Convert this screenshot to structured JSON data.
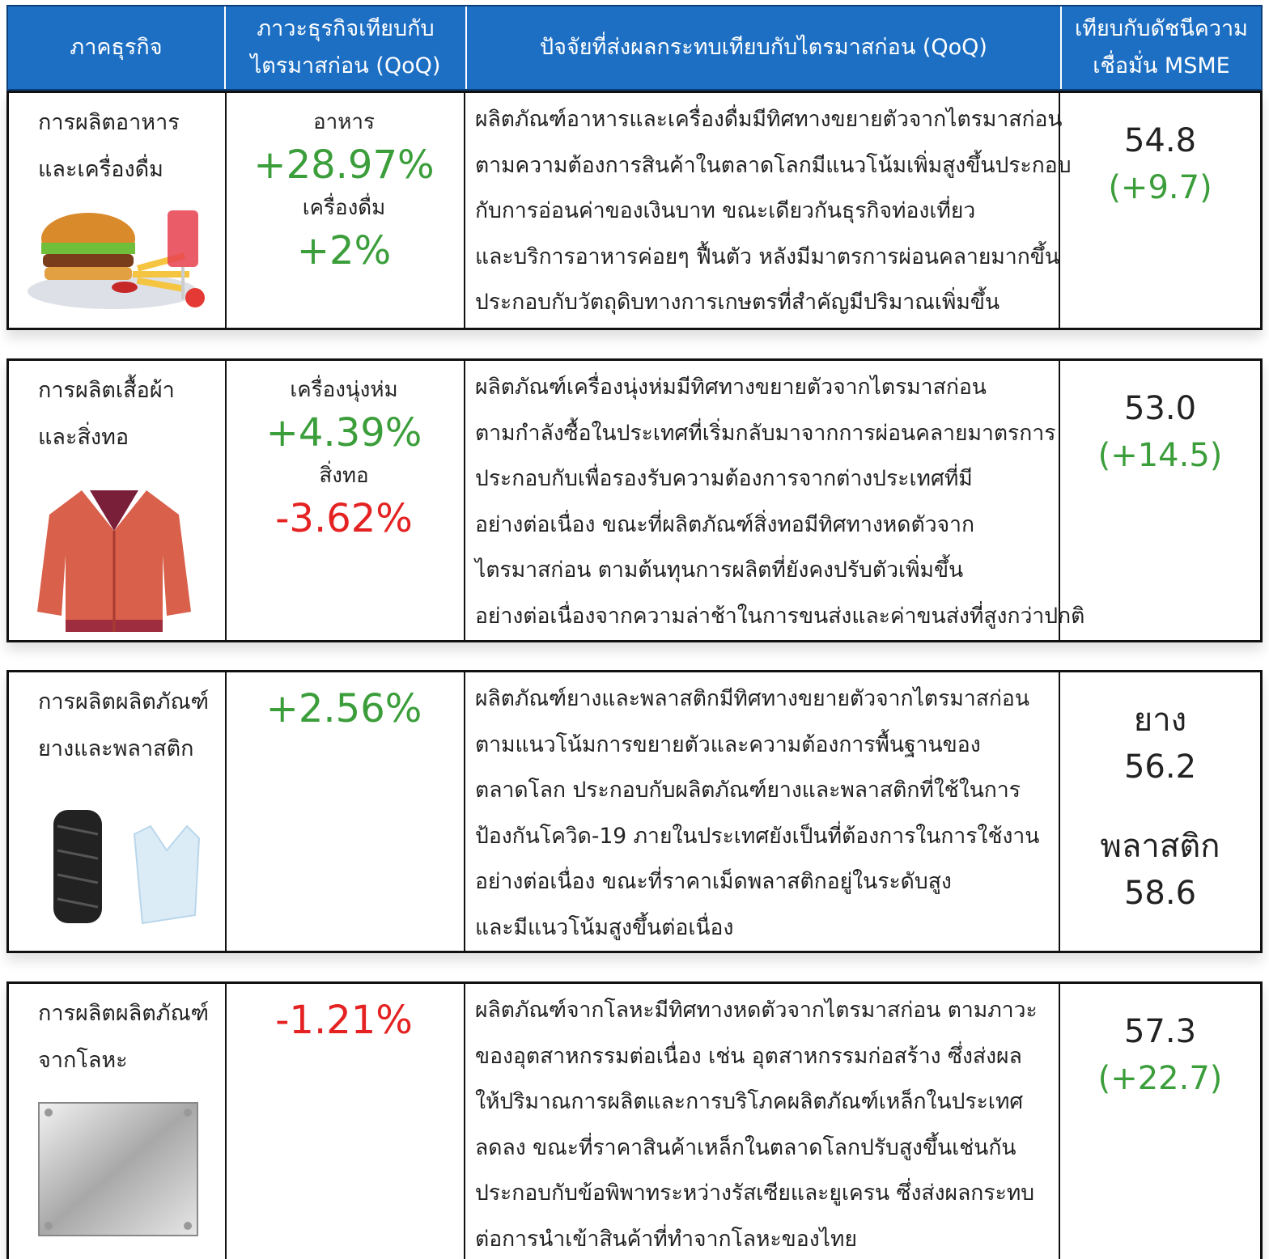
{
  "header": [
    [
      "ภาคธุรกิจ"
    ],
    [
      "ภาวะธุรกิจเทียบกับ",
      "ไตรมาสก่อน (QoQ)"
    ],
    [
      "ปัจจัยที่ส่งผลกระทบเทียบกับไตรมาสก่อน (QoQ)"
    ],
    [
      "เทียบกับดัชนีความ",
      "เชื่อมั่น MSME"
    ]
  ],
  "rows": [
    {
      "sector": [
        "การผลิตอาหาร",
        "และเครื่องดื่ม"
      ],
      "qoq": [
        {
          "label": "อาหาร",
          "value": "+28.97%",
          "color": "#3b9e3b"
        },
        {
          "label": "เครื่องดื่ม",
          "value": "+2%",
          "color": "#3b9e3b"
        }
      ],
      "factors": [
        "ผลิตภัณฑ์อาหารและเครื่องดื่มมีทิศทางขยายตัวจากไตรมาสก่อน",
        "ตามความต้องการสินค้าในตลาดโลกมีแนวโน้มเพิ่มสูงขึ้นประกอบ",
        "กับการอ่อนค่าของเงินบาท ขณะเดียวกันธุรกิจท่องเที่ยว",
        "และบริการอาหารค่อยๆ ฟื้นตัว หลังมีมาตรการผ่อนคลายมากขึ้น",
        "ประกอบกับวัตถุดิบทางการเกษตรที่สำคัญมีปริมาณเพิ่มขึ้น"
      ],
      "index": [
        {
          "value": "54.8",
          "change": "(+9.7)"
        }
      ]
    },
    {
      "sector": [
        "การผลิตเสื้อผ้า",
        "และสิ่งทอ"
      ],
      "qoq": [
        {
          "label": "เครื่องนุ่งห่ม",
          "value": "+4.39%",
          "color": "#3b9e3b"
        },
        {
          "label": "สิ่งทอ",
          "value": "-3.62%",
          "color": "#e52222"
        }
      ],
      "factors": [
        "ผลิตภัณฑ์เครื่องนุ่งห่มมีทิศทางขยายตัวจากไตรมาสก่อน",
        "ตามกำลังซื้อในประเทศที่เริ่มกลับมาจากการผ่อนคลายมาตรการ",
        "ประกอบกับเพื่อรองรับความต้องการจากต่างประเทศที่มี",
        "อย่างต่อเนื่อง ขณะที่ผลิตภัณฑ์สิ่งทอมีทิศทางหดตัวจาก",
        "ไตรมาสก่อน ตามต้นทุนการผลิตที่ยังคงปรับตัวเพิ่มขึ้น",
        "อย่างต่อเนื่องจากความล่าช้าในการขนส่งและค่าขนส่งที่สูงกว่าปกติ"
      ],
      "index": [
        {
          "value": "53.0",
          "change": "(+14.5)"
        }
      ]
    },
    {
      "sector": [
        "การผลิตผลิตภัณฑ์",
        "ยางและพลาสติก"
      ],
      "qoq": [
        {
          "value": "+2.56%",
          "color": "#3b9e3b"
        }
      ],
      "factors": [
        "ผลิตภัณฑ์ยางและพลาสติกมีทิศทางขยายตัวจากไตรมาสก่อน",
        "ตามแนวโน้มการขยายตัวและความต้องการพื้นฐานของ",
        "ตลาดโลก ประกอบกับผลิตภัณฑ์ยางและพลาสติกที่ใช้ในการ",
        "ป้องกันโควิด-19 ภายในประเทศยังเป็นที่ต้องการในการใช้งาน",
        "อย่างต่อเนื่อง ขณะที่ราคาเม็ดพลาสติกอยู่ในระดับสูง",
        "และมีแนวโน้มสูงขึ้นต่อเนื่อง"
      ],
      "index": [
        {
          "label": "ยาง",
          "value": "56.2"
        },
        {
          "label": "พลาสติก",
          "value": "58.6"
        }
      ]
    },
    {
      "sector": [
        "การผลิตผลิตภัณฑ์",
        "จากโลหะ"
      ],
      "qoq": [
        {
          "value": "-1.21%",
          "color": "#e52222"
        }
      ],
      "factors": [
        "ผลิตภัณฑ์จากโลหะมีทิศทางหดตัวจากไตรมาสก่อน ตามภาวะ",
        "ของอุตสาหกรรมต่อเนื่อง เช่น อุตสาหกรรมก่อสร้าง ซึ่งส่งผล",
        "ให้ปริมาณการผลิตและการบริโภคผลิตภัณฑ์เหล็กในประเทศ",
        "ลดลง ขณะที่ราคาสินค้าเหล็กในตลาดโลกปรับสูงขึ้นเช่นกัน",
        "ประกอบกับข้อพิพาทระหว่างรัสเซียและยูเครน ซึ่งส่งผลกระทบ",
        "ต่อการนำเข้าสินค้าที่ทำจากโลหะของไทย"
      ],
      "index": [
        {
          "value": "57.3",
          "change": "(+22.7)"
        }
      ]
    }
  ]
}
